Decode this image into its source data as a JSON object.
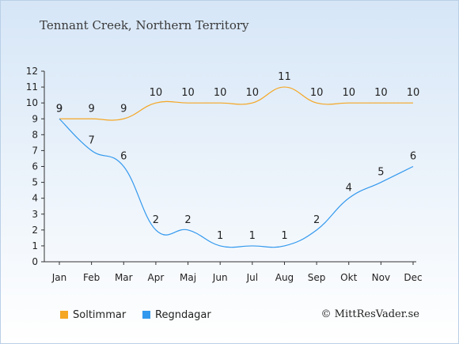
{
  "chart_data": {
    "type": "line",
    "title": "Tennant Creek, Northern Territory",
    "categories": [
      "Jan",
      "Feb",
      "Mar",
      "Apr",
      "Maj",
      "Jun",
      "Jul",
      "Aug",
      "Sep",
      "Okt",
      "Nov",
      "Dec"
    ],
    "series": [
      {
        "name": "Soltimmar",
        "color": "#f5a623",
        "values": [
          9,
          9,
          9,
          10,
          10,
          10,
          10,
          11,
          10,
          10,
          10,
          10
        ]
      },
      {
        "name": "Regndagar",
        "color": "#3399ee",
        "values": [
          9,
          7,
          6,
          2,
          2,
          1,
          1,
          1,
          2,
          4,
          5,
          6
        ]
      }
    ],
    "ylim": [
      0,
      12
    ],
    "yticks": [
      "0",
      "1",
      "2",
      "3",
      "4",
      "5",
      "6",
      "7",
      "8",
      "9",
      "10",
      "11",
      "12"
    ],
    "xlabel": "",
    "ylabel": "",
    "grid": false,
    "legend_position": "bottom-left"
  },
  "legend": {
    "sunshine_label": "Soltimmar",
    "rain_label": "Regndagar"
  },
  "footer": {
    "copyright": "© MittResVader.se"
  },
  "colors": {
    "sunshine": "#f5a623",
    "rain": "#3399ee",
    "axis": "#333333"
  }
}
